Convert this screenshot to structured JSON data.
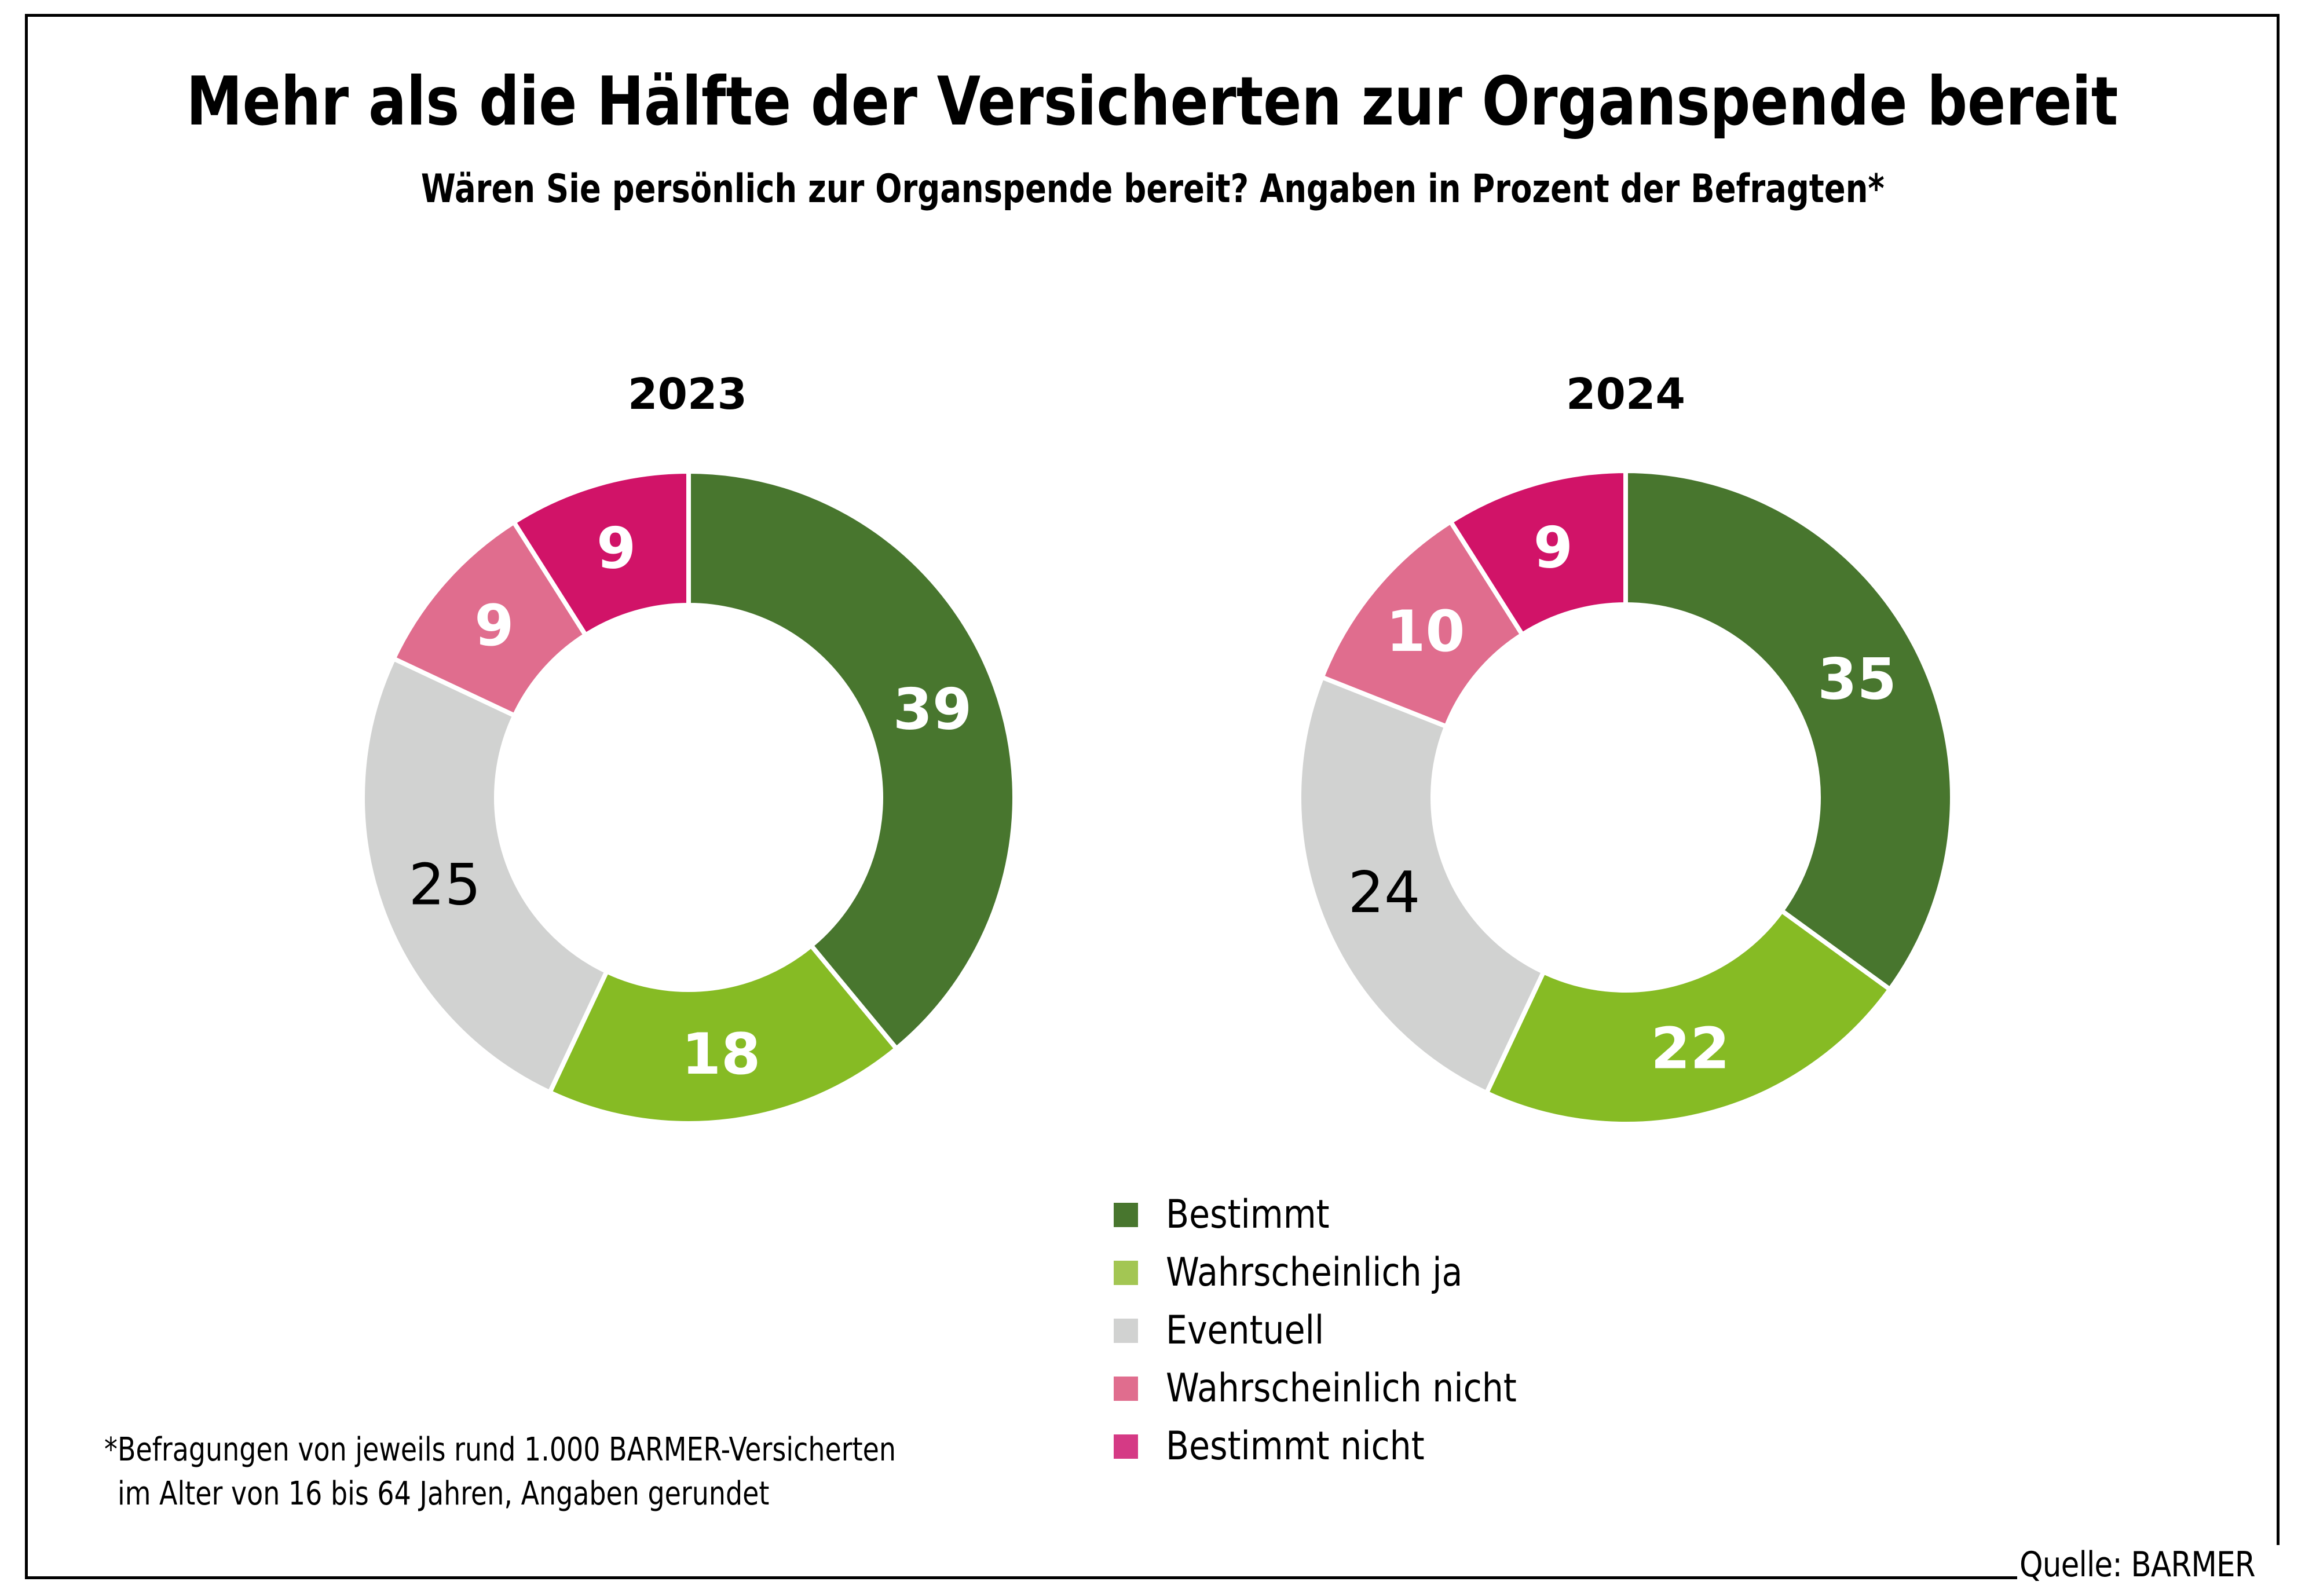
{
  "title": "Mehr als die Hälfte der Versicherten zur Organspende bereit",
  "subtitle": "Wären Sie persönlich zur Organspende bereit? Angaben in Prozent der Befragten*",
  "source": "Quelle: BARMER",
  "footnote": {
    "line1": "*Befragungen von jeweils rund 1.000 BARMER-Versicherten",
    "line2": "im Alter von 16 bis 64 Jahren, Angaben gerundet"
  },
  "legend": [
    {
      "label": "Bestimmt",
      "color": "#48762E"
    },
    {
      "label": "Wahrscheinlich ja",
      "color": "#A3C653"
    },
    {
      "label": "Eventuell",
      "color": "#D1D2D1"
    },
    {
      "label": "Wahrscheinlich nicht",
      "color": "#E06D8E"
    },
    {
      "label": "Bestimmt nicht",
      "color": "#D53A85"
    }
  ],
  "chart_data": [
    {
      "type": "pie",
      "variant": "donut",
      "title": "2023",
      "unit": "%",
      "categories": [
        "Bestimmt",
        "Wahrscheinlich ja",
        "Eventuell",
        "Wahrscheinlich nicht",
        "Bestimmt nicht"
      ],
      "values": [
        39,
        18,
        25,
        9,
        9
      ],
      "colors": [
        "#48762E",
        "#86BB24",
        "#D1D2D1",
        "#E06D8E",
        "#D11368"
      ],
      "label_colors": [
        "#FFFFFF",
        "#FFFFFF",
        "#000000",
        "#FFFFFF",
        "#FFFFFF"
      ],
      "start": "top",
      "direction": "clockwise"
    },
    {
      "type": "pie",
      "variant": "donut",
      "title": "2024",
      "unit": "%",
      "categories": [
        "Bestimmt",
        "Wahrscheinlich ja",
        "Eventuell",
        "Wahrscheinlich nicht",
        "Bestimmt nicht"
      ],
      "values": [
        35,
        22,
        24,
        10,
        9
      ],
      "colors": [
        "#48762E",
        "#86BB24",
        "#D1D2D1",
        "#E06D8E",
        "#D11368"
      ],
      "label_colors": [
        "#FFFFFF",
        "#FFFFFF",
        "#000000",
        "#FFFFFF",
        "#FFFFFF"
      ],
      "start": "top",
      "direction": "clockwise"
    }
  ]
}
